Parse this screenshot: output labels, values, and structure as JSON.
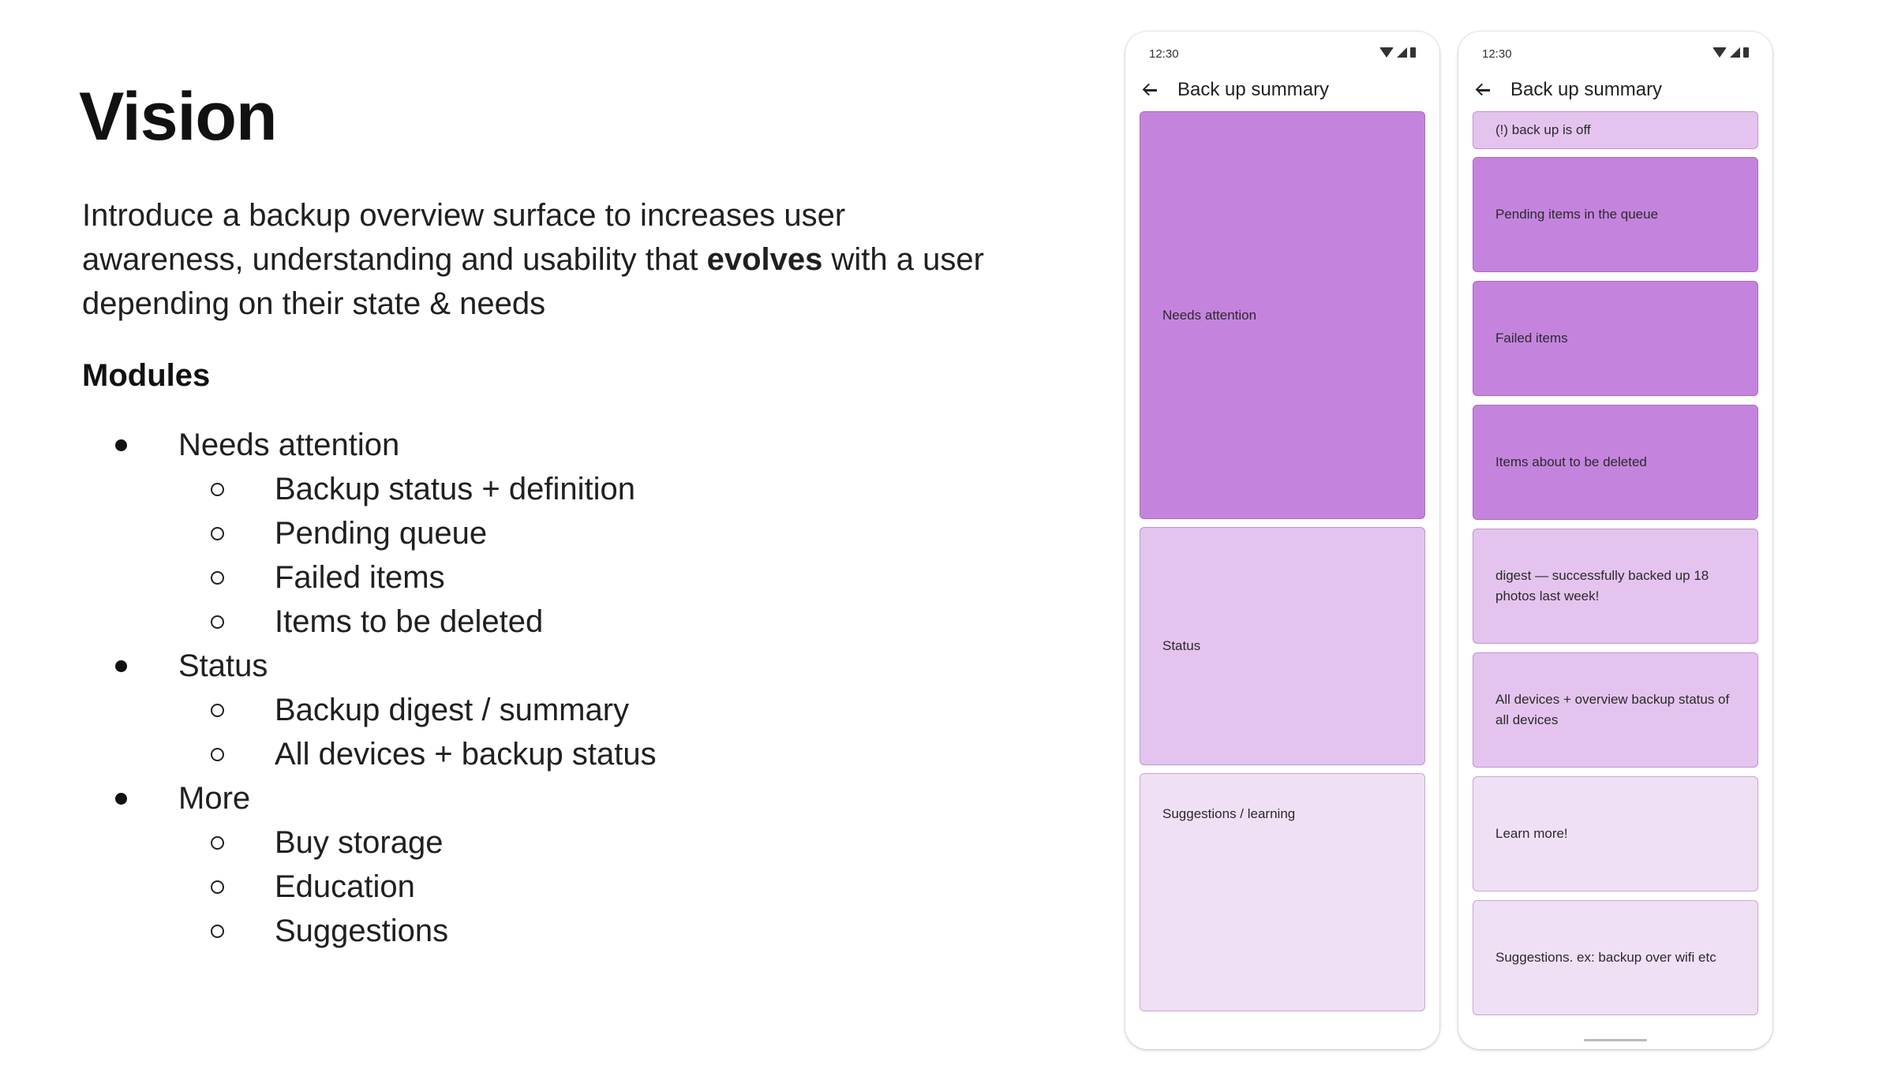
{
  "slide": {
    "title": "Vision",
    "intro_before": "Introduce a backup overview surface to increases user awareness, understanding and usability that ",
    "intro_bold": "evolves",
    "intro_after": " with a user depending on their state & needs",
    "modules_heading": "Modules",
    "modules": [
      {
        "label": "Needs attention",
        "children": [
          "Backup status + definition",
          "Pending queue",
          "Failed items",
          "Items to be deleted"
        ]
      },
      {
        "label": "Status",
        "children": [
          "Backup digest / summary",
          "All devices + backup status"
        ]
      },
      {
        "label": "More",
        "children": [
          "Buy storage",
          "Education",
          "Suggestions"
        ]
      }
    ]
  },
  "phone_a": {
    "time": "12:30",
    "title": "Back up summary",
    "cards": [
      "Needs attention",
      "Status",
      "Suggestions / learning"
    ]
  },
  "phone_b": {
    "time": "12:30",
    "title": "Back up summary",
    "cards": [
      "(!) back up is off",
      "Pending items in the queue",
      "Failed items",
      "Items about to be deleted",
      "digest — successfully backed up 18 photos last week!",
      "All devices + overview backup status of all devices",
      "Learn more!",
      "Suggestions. ex: backup over wifi etc"
    ]
  },
  "colors": {
    "strong": "#c484de",
    "mid": "#e4c4ee",
    "light": "#f0e0f6"
  }
}
